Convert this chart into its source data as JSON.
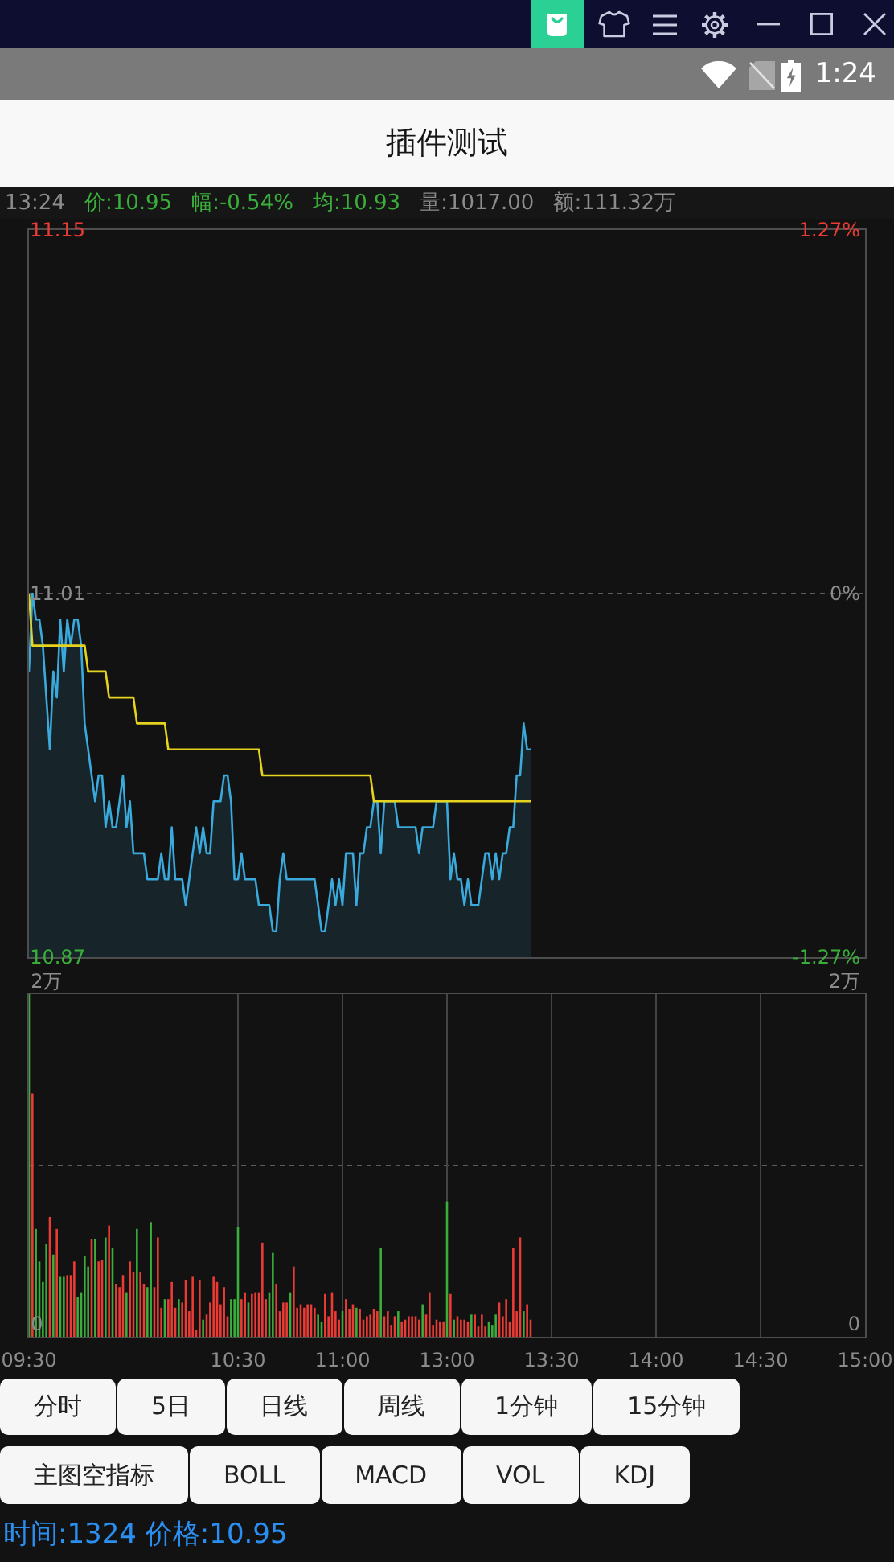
{
  "chart_data": [
    {
      "type": "other",
      "annotations": [
        "1:24"
      ]
    },
    {
      "type": "line",
      "title": "插件测试",
      "annotations": [
        "13:24",
        "价:10.95",
        "幅:-0.54%",
        "均:10.93",
        "量:1017.00",
        "额:111.32万"
      ],
      "categories": [
        null,
        null,
        null,
        null,
        null,
        null,
        null,
        null,
        null,
        null,
        null,
        null,
        null,
        null,
        null,
        null,
        null,
        null,
        null,
        null,
        null,
        null,
        null,
        null,
        null,
        null,
        null,
        null,
        null,
        null,
        null,
        null,
        null,
        null,
        null,
        null,
        null,
        null,
        null,
        null,
        null,
        null,
        null,
        null,
        null,
        null,
        null,
        null,
        null,
        null,
        null,
        null,
        null,
        null,
        null,
        null,
        null,
        null,
        null,
        null,
        null,
        null,
        null,
        null,
        null,
        null,
        null,
        null,
        null,
        null,
        null,
        null,
        null,
        null,
        null,
        null,
        null,
        null,
        null,
        null,
        null,
        null,
        null,
        null,
        null,
        null,
        null,
        null,
        null,
        null,
        null,
        null,
        null,
        null,
        null,
        null,
        null,
        null,
        null,
        null,
        null,
        null,
        null,
        null,
        null,
        null,
        null,
        null,
        null,
        null,
        null,
        null,
        null,
        null,
        null,
        null,
        null,
        null,
        null,
        null,
        null,
        null,
        null,
        null,
        null,
        null,
        null,
        null,
        null,
        null,
        null,
        null,
        null,
        null,
        null,
        null,
        null,
        null,
        null,
        null,
        null,
        null,
        null,
        null,
        null,
        null,
        null,
        null,
        null,
        null,
        null,
        null,
        null,
        null,
        null,
        null,
        null,
        null,
        null,
        null,
        null,
        null,
        null,
        null,
        null,
        null,
        null,
        null,
        null,
        null,
        null,
        null,
        null,
        null,
        null,
        null,
        null,
        null,
        null,
        null,
        null,
        null,
        null,
        null,
        null,
        null,
        null,
        null,
        null,
        null,
        null,
        null,
        null,
        null,
        null,
        null,
        null,
        null,
        null,
        null,
        null,
        null,
        null,
        null,
        null,
        null,
        null,
        null,
        null,
        null,
        null,
        null,
        null,
        null,
        null,
        null,
        null,
        null,
        null,
        null,
        null,
        null,
        null,
        null,
        null,
        null,
        null,
        null,
        null,
        null,
        null,
        null,
        null,
        null,
        null,
        null,
        null,
        null,
        null,
        null,
        null
      ],
      "series": [
        {
          "type": "area",
          "color": "#3aa9dc",
          "values": [
            10.98,
            11.01,
            11.0,
            11.0,
            10.99,
            10.97,
            10.95,
            10.98,
            10.97,
            11.0,
            10.98,
            11.0,
            10.99,
            11.0,
            11.0,
            10.99,
            10.96,
            10.95,
            10.94,
            10.93,
            10.94,
            10.94,
            10.92,
            10.93,
            10.92,
            10.92,
            10.93,
            10.94,
            10.92,
            10.93,
            10.91,
            10.91,
            10.91,
            10.91,
            10.9,
            10.9,
            10.9,
            10.9,
            10.91,
            10.9,
            10.9,
            10.92,
            10.9,
            10.9,
            10.9,
            10.89,
            10.9,
            10.91,
            10.92,
            10.91,
            10.92,
            10.91,
            10.91,
            10.93,
            10.93,
            10.93,
            10.94,
            10.94,
            10.93,
            10.9,
            10.9,
            10.91,
            10.9,
            10.9,
            10.9,
            10.9,
            10.89,
            10.89,
            10.89,
            10.89,
            10.88,
            10.88,
            10.9,
            10.91,
            10.9,
            10.9,
            10.9,
            10.9,
            10.9,
            10.9,
            10.9,
            10.9,
            10.9,
            10.89,
            10.88,
            10.88,
            10.89,
            10.9,
            10.89,
            10.9,
            10.89,
            10.91,
            10.91,
            10.91,
            10.89,
            10.91,
            10.91,
            10.92,
            10.92,
            10.93,
            10.93,
            10.91,
            10.93,
            10.93,
            10.93,
            10.93,
            10.92,
            10.92,
            10.92,
            10.92,
            10.92,
            10.92,
            10.91,
            10.92,
            10.92,
            10.92,
            10.92,
            10.93,
            10.93,
            10.93,
            10.93,
            10.9,
            10.91,
            10.9,
            10.9,
            10.89,
            10.9,
            10.89,
            10.89,
            10.89,
            10.9,
            10.91,
            10.91,
            10.9,
            10.91,
            10.9,
            10.91,
            10.91,
            10.92,
            10.92,
            10.94,
            10.94,
            10.96,
            10.95,
            10.95,
            null,
            null,
            null,
            null,
            null,
            null,
            null,
            null,
            null,
            null,
            null,
            null,
            null,
            null,
            null,
            null,
            null,
            null,
            null,
            null,
            null,
            null,
            null,
            null,
            null,
            null,
            null,
            null,
            null,
            null,
            null,
            null,
            null,
            null,
            null,
            null,
            null,
            null,
            null,
            null,
            null,
            null,
            null,
            null,
            null,
            null,
            null,
            null,
            null,
            null,
            null,
            null,
            null,
            null,
            null,
            null,
            null,
            null,
            null,
            null,
            null,
            null,
            null,
            null,
            null,
            null,
            null,
            null,
            null,
            null,
            null,
            null,
            null,
            null,
            null,
            null,
            null,
            null,
            null,
            null,
            null,
            null,
            null,
            null,
            null,
            null,
            null,
            null,
            null,
            null,
            null,
            null,
            null,
            null,
            null,
            null
          ]
        },
        {
          "type": "line",
          "color": "#e6d31e",
          "values": [
            11.01,
            10.99,
            10.99,
            10.99,
            10.99,
            10.99,
            10.99,
            10.99,
            10.99,
            10.99,
            10.99,
            10.99,
            10.99,
            10.99,
            10.99,
            10.99,
            10.99,
            10.98,
            10.98,
            10.98,
            10.98,
            10.98,
            10.98,
            10.97,
            10.97,
            10.97,
            10.97,
            10.97,
            10.97,
            10.97,
            10.97,
            10.96,
            10.96,
            10.96,
            10.96,
            10.96,
            10.96,
            10.96,
            10.96,
            10.96,
            10.95,
            10.95,
            10.95,
            10.95,
            10.95,
            10.95,
            10.95,
            10.95,
            10.95,
            10.95,
            10.95,
            10.95,
            10.95,
            10.95,
            10.95,
            10.95,
            10.95,
            10.95,
            10.95,
            10.95,
            10.95,
            10.95,
            10.95,
            10.95,
            10.95,
            10.95,
            10.95,
            10.94,
            10.94,
            10.94,
            10.94,
            10.94,
            10.94,
            10.94,
            10.94,
            10.94,
            10.94,
            10.94,
            10.94,
            10.94,
            10.94,
            10.94,
            10.94,
            10.94,
            10.94,
            10.94,
            10.94,
            10.94,
            10.94,
            10.94,
            10.94,
            10.94,
            10.94,
            10.94,
            10.94,
            10.94,
            10.94,
            10.94,
            10.94,
            10.93,
            10.93,
            10.93,
            10.93,
            10.93,
            10.93,
            10.93,
            10.93,
            10.93,
            10.93,
            10.93,
            10.93,
            10.93,
            10.93,
            10.93,
            10.93,
            10.93,
            10.93,
            10.93,
            10.93,
            10.93,
            10.93,
            10.93,
            10.93,
            10.93,
            10.93,
            10.93,
            10.93,
            10.93,
            10.93,
            10.93,
            10.93,
            10.93,
            10.93,
            10.93,
            10.93,
            10.93,
            10.93,
            10.93,
            10.93,
            10.93,
            10.93,
            10.93,
            10.93,
            10.93,
            10.93,
            null,
            null,
            null,
            null,
            null,
            null,
            null,
            null,
            null,
            null,
            null,
            null,
            null,
            null,
            null,
            null,
            null,
            null,
            null,
            null,
            null,
            null,
            null,
            null,
            null,
            null,
            null,
            null,
            null,
            null,
            null,
            null,
            null,
            null,
            null,
            null,
            null,
            null,
            null,
            null,
            null,
            null,
            null,
            null,
            null,
            null,
            null,
            null,
            null,
            null,
            null,
            null,
            null,
            null,
            null,
            null,
            null,
            null,
            null,
            null,
            null,
            null,
            null,
            null,
            null,
            null,
            null,
            null,
            null,
            null,
            null,
            null,
            null,
            null,
            null,
            null,
            null,
            null,
            null,
            null,
            null,
            null,
            null,
            null,
            null,
            null,
            null,
            null,
            null,
            null,
            null,
            null,
            null,
            null,
            null,
            null
          ]
        }
      ],
      "ylim": [
        10.87,
        11.15
      ],
      "yticks": [
        10.87,
        11.01,
        11.15
      ],
      "y2lim": [
        -1.27,
        1.27
      ],
      "y2ticks": [
        {
          "value": -1.27,
          "label": "-1.27%"
        },
        {
          "value": 0,
          "label": "0%"
        },
        {
          "value": 1.27,
          "label": "1.27%"
        }
      ],
      "ref_lines": [
        {
          "axis": "y",
          "value": 11.01,
          "color": "#5c5c5c",
          "line_style": "dotted"
        }
      ],
      "tick_labels": "y"
    },
    {
      "type": "bar",
      "categories": [
        "09:30",
        null,
        null,
        null,
        null,
        null,
        null,
        null,
        null,
        null,
        null,
        null,
        null,
        null,
        null,
        null,
        null,
        null,
        null,
        null,
        null,
        null,
        null,
        null,
        null,
        null,
        null,
        null,
        null,
        null,
        null,
        null,
        null,
        null,
        null,
        null,
        null,
        null,
        null,
        null,
        null,
        null,
        null,
        null,
        null,
        null,
        null,
        null,
        null,
        null,
        null,
        null,
        null,
        null,
        null,
        null,
        null,
        null,
        null,
        null,
        "10:30",
        null,
        null,
        null,
        null,
        null,
        null,
        null,
        null,
        null,
        null,
        null,
        null,
        null,
        null,
        null,
        null,
        null,
        null,
        null,
        null,
        null,
        null,
        null,
        null,
        null,
        null,
        null,
        null,
        null,
        "11:00",
        null,
        null,
        null,
        null,
        null,
        null,
        null,
        null,
        null,
        null,
        null,
        null,
        null,
        null,
        null,
        null,
        null,
        null,
        null,
        null,
        null,
        null,
        null,
        null,
        null,
        null,
        null,
        null,
        null,
        "13:00",
        null,
        null,
        null,
        null,
        null,
        null,
        null,
        null,
        null,
        null,
        null,
        null,
        null,
        null,
        null,
        null,
        null,
        null,
        null,
        null,
        null,
        null,
        null,
        null,
        null,
        null,
        null,
        null,
        null,
        "13:30",
        null,
        null,
        null,
        null,
        null,
        null,
        null,
        null,
        null,
        null,
        null,
        null,
        null,
        null,
        null,
        null,
        null,
        null,
        null,
        null,
        null,
        null,
        null,
        null,
        null,
        null,
        null,
        null,
        null,
        "14:00",
        null,
        null,
        null,
        null,
        null,
        null,
        null,
        null,
        null,
        null,
        null,
        null,
        null,
        null,
        null,
        null,
        null,
        null,
        null,
        null,
        null,
        null,
        null,
        null,
        null,
        null,
        null,
        null,
        null,
        "14:30",
        null,
        null,
        null,
        null,
        null,
        null,
        null,
        null,
        null,
        null,
        null,
        null,
        null,
        null,
        null,
        null,
        null,
        null,
        null,
        null,
        null,
        null,
        null,
        null,
        null,
        null,
        null,
        null,
        null,
        "15:00"
      ],
      "values": [
        2,
        1.42,
        0.63,
        0.44,
        0.32,
        0.54,
        0.7,
        0.48,
        0.63,
        0.35,
        0.35,
        0.36,
        0.36,
        0.44,
        0.23,
        0.26,
        0.47,
        0.41,
        0.57,
        0.57,
        0.44,
        0.45,
        0.58,
        0.65,
        0.52,
        0.31,
        0.29,
        0.36,
        0.26,
        0.44,
        0.38,
        0.63,
        0.38,
        0.31,
        0.29,
        0.67,
        0.29,
        0.58,
        0.17,
        0.22,
        0.22,
        0.32,
        0.17,
        0.22,
        0.2,
        0.33,
        0.15,
        0.35,
        0.04,
        0.33,
        0.1,
        0.13,
        0.2,
        0.35,
        0.32,
        0.19,
        0.29,
        0.12,
        0.22,
        0.22,
        0.64,
        0.22,
        0.26,
        0.2,
        0.25,
        0.26,
        0.26,
        0.55,
        0.22,
        0.26,
        0.49,
        0.31,
        0.15,
        0.2,
        0.2,
        0.26,
        0.41,
        0.17,
        0.19,
        0.17,
        0.19,
        0.19,
        0.17,
        0.13,
        0.09,
        0.25,
        0.12,
        0.26,
        0.15,
        0.1,
        0.15,
        0.22,
        0.16,
        0.19,
        0.17,
        0.16,
        0.1,
        0.12,
        0.13,
        0.16,
        0.15,
        0.52,
        0.12,
        0.15,
        0.07,
        0.12,
        0.15,
        0.09,
        0.1,
        0.12,
        0.12,
        0.12,
        0.1,
        0.19,
        0.13,
        0.26,
        0.07,
        0.1,
        0.09,
        0.09,
        0.79,
        0.25,
        0.1,
        0.12,
        0.1,
        0.1,
        0.09,
        0.13,
        0.13,
        0.06,
        0.13,
        0.06,
        0.09,
        0.07,
        0.13,
        0.2,
        0.12,
        0.22,
        0.09,
        0.52,
        0.15,
        0.58,
        0.15,
        0.19,
        0.1,
        null,
        null,
        null,
        null,
        null,
        null,
        null,
        null,
        null,
        null,
        null,
        null,
        null,
        null,
        null,
        null,
        null,
        null,
        null,
        null,
        null,
        null,
        null,
        null,
        null,
        null,
        null,
        null,
        null,
        null,
        null,
        null,
        null,
        null,
        null,
        null,
        null,
        null,
        null,
        null,
        null,
        null,
        null,
        null,
        null,
        null,
        null,
        null,
        null,
        null,
        null,
        null,
        null,
        null,
        null,
        null,
        null,
        null,
        null,
        null,
        null,
        null,
        null,
        null,
        null,
        null,
        null,
        null,
        null,
        null,
        null,
        null,
        null,
        null,
        null,
        null,
        null,
        null,
        null,
        null,
        null,
        null,
        null,
        null,
        null,
        null,
        null,
        null,
        null,
        null,
        null,
        null,
        null,
        null,
        null,
        null
      ],
      "colors": [
        "#3aae3a",
        "#ec3b35",
        "#3aae3a",
        "#3aae3a",
        "#3aae3a",
        "#3aae3a",
        "#ec3b35",
        "#3aae3a",
        "#ec3b35",
        "#3aae3a",
        "#3aae3a",
        "#ec3b35",
        "#ec3b35",
        "#ec3b35",
        "#3aae3a",
        "#3aae3a",
        "#3aae3a",
        "#3aae3a",
        "#ec3b35",
        "#3aae3a",
        "#ec3b35",
        "#ec3b35",
        "#3aae3a",
        "#ec3b35",
        "#3aae3a",
        "#ec3b35",
        "#ec3b35",
        "#ec3b35",
        "#3aae3a",
        "#ec3b35",
        "#ec3b35",
        "#3aae3a",
        "#ec3b35",
        "#ec3b35",
        "#3aae3a",
        "#3aae3a",
        "#ec3b35",
        "#ec3b35",
        "#ec3b35",
        "#3aae3a",
        "#ec3b35",
        "#ec3b35",
        "#ec3b35",
        "#3aae3a",
        "#ec3b35",
        "#ec3b35",
        "#ec3b35",
        "#ec3b35",
        "#ec3b35",
        "#ec3b35",
        "#3aae3a",
        "#ec3b35",
        "#ec3b35",
        "#ec3b35",
        "#ec3b35",
        "#ec3b35",
        "#ec3b35",
        "#ec3b35",
        "#3aae3a",
        "#3aae3a",
        "#3aae3a",
        "#ec3b35",
        "#ec3b35",
        "#3aae3a",
        "#ec3b35",
        "#ec3b35",
        "#ec3b35",
        "#ec3b35",
        "#ec3b35",
        "#3aae3a",
        "#3aae3a",
        "#ec3b35",
        "#ec3b35",
        "#ec3b35",
        "#ec3b35",
        "#3aae3a",
        "#ec3b35",
        "#ec3b35",
        "#ec3b35",
        "#ec3b35",
        "#ec3b35",
        "#ec3b35",
        "#ec3b35",
        "#3aae3a",
        "#3aae3a",
        "#ec3b35",
        "#ec3b35",
        "#ec3b35",
        "#ec3b35",
        "#ec3b35",
        "#3aae3a",
        "#ec3b35",
        "#ec3b35",
        "#ec3b35",
        "#3aae3a",
        "#ec3b35",
        "#ec3b35",
        "#ec3b35",
        "#ec3b35",
        "#ec3b35",
        "#ec3b35",
        "#3aae3a",
        "#ec3b35",
        "#ec3b35",
        "#ec3b35",
        "#ec3b35",
        "#3aae3a",
        "#ec3b35",
        "#ec3b35",
        "#ec3b35",
        "#ec3b35",
        "#ec3b35",
        "#ec3b35",
        "#3aae3a",
        "#ec3b35",
        "#ec3b35",
        "#ec3b35",
        "#ec3b35",
        "#ec3b35",
        "#ec3b35",
        "#3aae3a",
        "#ec3b35",
        "#3aae3a",
        "#ec3b35",
        "#ec3b35",
        "#ec3b35",
        "#ec3b35",
        "#3aae3a",
        "#ec3b35",
        "#ec3b35",
        "#ec3b35",
        "#ec3b35",
        "#3aae3a",
        "#3aae3a",
        "#3aae3a",
        "#ec3b35",
        "#ec3b35",
        "#ec3b35",
        "#ec3b35",
        "#ec3b35",
        "#ec3b35",
        "#ec3b35",
        "#3aae3a",
        "#ec3b35",
        "#ec3b35",
        null,
        null,
        null,
        null,
        null,
        null,
        null,
        null,
        null,
        null,
        null,
        null,
        null,
        null,
        null,
        null,
        null,
        null,
        null,
        null,
        null,
        null,
        null,
        null,
        null,
        null,
        null,
        null,
        null,
        null,
        null,
        null,
        null,
        null,
        null,
        null,
        null,
        null,
        null,
        null,
        null,
        null,
        null,
        null,
        null,
        null,
        null,
        null,
        null,
        null,
        null,
        null,
        null,
        null,
        null,
        null,
        null,
        null,
        null,
        null,
        null,
        null,
        null,
        null,
        null,
        null,
        null,
        null,
        null,
        null,
        null,
        null,
        null,
        null,
        null,
        null,
        null,
        null,
        null,
        null,
        null,
        null,
        null,
        null,
        null,
        null,
        null,
        null,
        null,
        null,
        null,
        null,
        null,
        null,
        null,
        null
      ],
      "ylim": [
        0,
        2
      ],
      "yticks": [
        0,
        {
          "value": 2,
          "label": "2万"
        }
      ],
      "y2lim": [
        0,
        2
      ],
      "y2ticks": [
        0,
        {
          "value": 2,
          "label": "2万"
        }
      ],
      "ref_lines": [
        {
          "axis": "y",
          "value": 1,
          "color": "#5c5c5c",
          "line_style": "dotted"
        }
      ],
      "grid": "x"
    },
    {
      "type": "other",
      "annotations": [
        "分时",
        "5日",
        "日线",
        "周线",
        "1分钟",
        "15分钟",
        "主图空指标",
        "BOLL",
        "MACD",
        "VOL",
        "KDJ",
        "时间:1324 价格:10.95"
      ]
    }
  ]
}
